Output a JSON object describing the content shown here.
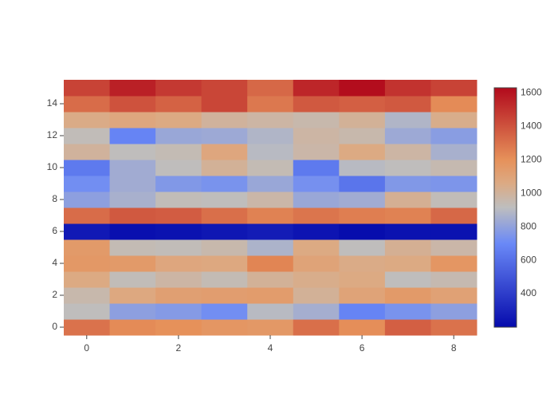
{
  "chart_data": {
    "type": "heatmap",
    "x": [
      0,
      1,
      2,
      3,
      4,
      5,
      6,
      7,
      8
    ],
    "y": [
      0,
      1,
      2,
      3,
      4,
      5,
      6,
      7,
      8,
      9,
      10,
      11,
      12,
      13,
      14,
      15
    ],
    "z": [
      [
        1300,
        1220,
        1200,
        1170,
        1160,
        1310,
        1210,
        1360,
        1300
      ],
      [
        920,
        790,
        770,
        720,
        900,
        850,
        680,
        740,
        790
      ],
      [
        960,
        1070,
        1120,
        1130,
        1140,
        1010,
        1100,
        1150,
        1110
      ],
      [
        1060,
        930,
        980,
        940,
        1010,
        1040,
        1060,
        920,
        950
      ],
      [
        1160,
        1150,
        1080,
        1070,
        1240,
        1100,
        1050,
        1060,
        1170
      ],
      [
        1150,
        940,
        930,
        960,
        870,
        1060,
        920,
        1020,
        970
      ],
      [
        260,
        220,
        230,
        250,
        270,
        240,
        210,
        230,
        230
      ],
      [
        1320,
        1380,
        1370,
        1310,
        1250,
        1290,
        1260,
        1250,
        1330
      ],
      [
        790,
        860,
        930,
        920,
        970,
        820,
        840,
        1020,
        930
      ],
      [
        720,
        840,
        760,
        740,
        820,
        730,
        620,
        760,
        750
      ],
      [
        640,
        840,
        920,
        1010,
        940,
        640,
        900,
        920,
        950
      ],
      [
        1000,
        920,
        940,
        1080,
        900,
        970,
        1060,
        980,
        860
      ],
      [
        930,
        680,
        820,
        830,
        880,
        980,
        960,
        830,
        780
      ],
      [
        1050,
        1080,
        1060,
        1000,
        980,
        960,
        1010,
        880,
        1040
      ],
      [
        1320,
        1400,
        1350,
        1440,
        1280,
        1380,
        1360,
        1380,
        1220
      ],
      [
        1450,
        1560,
        1480,
        1440,
        1330,
        1540,
        1620,
        1500,
        1450
      ]
    ],
    "xlim": [
      -0.5,
      8.5
    ],
    "ylim": [
      -0.5,
      15.5
    ],
    "zlim": [
      200,
      1630
    ],
    "xticks": [
      0,
      2,
      4,
      6,
      8
    ],
    "yticks": [
      0,
      2,
      4,
      6,
      8,
      10,
      12,
      14
    ],
    "zticks": [
      400,
      600,
      800,
      1000,
      1200,
      1400,
      1600
    ],
    "colorscale": [
      [
        0,
        "rgb(5,10,172)"
      ],
      [
        0.35,
        "rgb(106,137,247)"
      ],
      [
        0.5,
        "rgb(190,190,190)"
      ],
      [
        0.6,
        "rgb(220,170,132)"
      ],
      [
        0.7,
        "rgb(230,145,90)"
      ],
      [
        1,
        "rgb(178,10,28)"
      ]
    ]
  }
}
